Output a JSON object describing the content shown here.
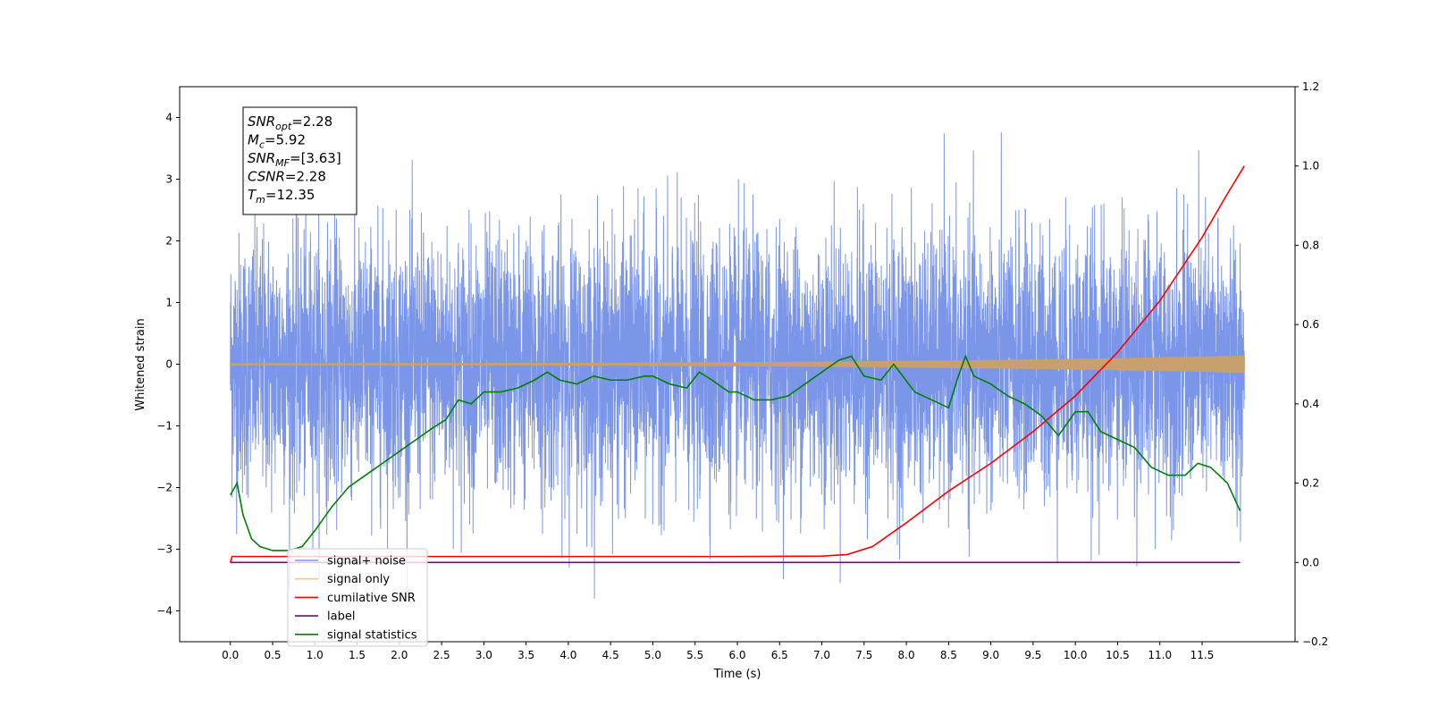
{
  "chart_data": {
    "type": "line",
    "xlabel": "Time (s)",
    "ylabel": "Whitened strain",
    "xlim": [
      -0.6,
      12.6
    ],
    "ylim": [
      -4.5,
      4.5
    ],
    "y2lim": [
      -0.2,
      1.2
    ],
    "xticks": [
      "0.0",
      "0.5",
      "1.0",
      "1.5",
      "2.0",
      "2.5",
      "3.0",
      "3.5",
      "4.0",
      "4.5",
      "5.0",
      "5.5",
      "6.0",
      "6.5",
      "7.0",
      "7.5",
      "8.0",
      "8.5",
      "9.0",
      "9.5",
      "10.0",
      "10.5",
      "11.0",
      "11.5"
    ],
    "yticks": [
      "−4",
      "−3",
      "−2",
      "−1",
      "0",
      "1",
      "2",
      "3",
      "4"
    ],
    "y2ticks": [
      "−0.2",
      "0.0",
      "0.2",
      "0.4",
      "0.6",
      "0.8",
      "1.0",
      "1.2"
    ],
    "annotation": {
      "lines": [
        {
          "sym": "SNR",
          "sub": "opt",
          "value": "=2.28"
        },
        {
          "sym": "M",
          "sub": "c",
          "value": "=5.92"
        },
        {
          "sym": "SNR",
          "sub": "MF",
          "value": "=[3.63]"
        },
        {
          "sym": "CSNR",
          "sub": "",
          "value": "=2.28"
        },
        {
          "sym": "T",
          "sub": "m",
          "value": "=12.35"
        }
      ]
    },
    "legend": {
      "location": "lower-left",
      "items": [
        {
          "label": "signal+ noise",
          "color": "#7b96e8"
        },
        {
          "label": "signal only",
          "color": "#f5c97a"
        },
        {
          "label": "cumilative SNR",
          "color": "#ff0000"
        },
        {
          "label": "label",
          "color": "#800080"
        },
        {
          "label": "signal statistics",
          "color": "#008000"
        }
      ]
    },
    "colors": {
      "noise": "#7b96e8",
      "signal": "#c8a070",
      "cum_snr": "#ff0000",
      "label": "#800080",
      "stats": "#008000"
    },
    "series": [
      {
        "name": "signal+ noise",
        "x_range": [
          0.0,
          12.0
        ],
        "y_min": -3.8,
        "y_max": 4.0
      },
      {
        "name": "signal only",
        "x_range": [
          0.0,
          12.0
        ],
        "amplitude_end": 0.12
      },
      {
        "name": "cumilative SNR",
        "axis": "right",
        "x": [
          0.0,
          0.02,
          6.0,
          7.0,
          7.3,
          7.6,
          8.0,
          8.5,
          9.0,
          9.5,
          10.0,
          10.5,
          11.0,
          11.5,
          11.8,
          12.0
        ],
        "y": [
          0.0,
          0.015,
          0.015,
          0.016,
          0.02,
          0.04,
          0.1,
          0.18,
          0.25,
          0.33,
          0.42,
          0.53,
          0.66,
          0.82,
          0.93,
          1.0
        ]
      },
      {
        "name": "label",
        "axis": "right",
        "x": [
          0.0,
          11.95
        ],
        "y": [
          0.0,
          0.0
        ]
      },
      {
        "name": "signal statistics",
        "axis": "right",
        "x": [
          0.0,
          0.08,
          0.15,
          0.25,
          0.35,
          0.5,
          0.7,
          0.85,
          1.0,
          1.2,
          1.4,
          1.6,
          1.8,
          2.0,
          2.2,
          2.4,
          2.55,
          2.7,
          2.85,
          3.0,
          3.2,
          3.4,
          3.6,
          3.75,
          3.9,
          4.1,
          4.3,
          4.5,
          4.7,
          4.9,
          5.0,
          5.2,
          5.4,
          5.55,
          5.7,
          5.9,
          6.0,
          6.2,
          6.4,
          6.6,
          6.8,
          7.0,
          7.2,
          7.35,
          7.5,
          7.7,
          7.85,
          8.1,
          8.3,
          8.5,
          8.6,
          8.7,
          8.8,
          9.0,
          9.2,
          9.4,
          9.6,
          9.8,
          10.0,
          10.15,
          10.3,
          10.5,
          10.7,
          10.9,
          11.1,
          11.3,
          11.45,
          11.6,
          11.8,
          11.95
        ],
        "y": [
          0.17,
          0.2,
          0.12,
          0.06,
          0.04,
          0.03,
          0.03,
          0.04,
          0.08,
          0.14,
          0.19,
          0.22,
          0.25,
          0.28,
          0.31,
          0.34,
          0.36,
          0.41,
          0.4,
          0.43,
          0.43,
          0.44,
          0.46,
          0.48,
          0.46,
          0.45,
          0.47,
          0.46,
          0.46,
          0.47,
          0.47,
          0.45,
          0.44,
          0.48,
          0.46,
          0.43,
          0.43,
          0.41,
          0.41,
          0.42,
          0.45,
          0.48,
          0.51,
          0.52,
          0.47,
          0.46,
          0.5,
          0.43,
          0.41,
          0.39,
          0.46,
          0.52,
          0.47,
          0.45,
          0.42,
          0.4,
          0.37,
          0.32,
          0.38,
          0.38,
          0.33,
          0.31,
          0.29,
          0.24,
          0.22,
          0.22,
          0.25,
          0.24,
          0.2,
          0.13
        ]
      }
    ]
  }
}
